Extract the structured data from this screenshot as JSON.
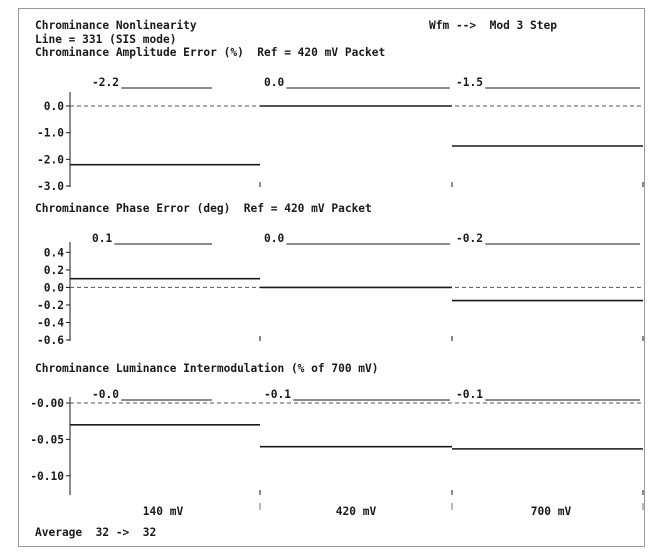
{
  "header": {
    "title": "Chrominance Nonlinearity",
    "mode": "Wfm -->  Mod 3 Step",
    "line": "Line = 331 (SIS mode)"
  },
  "panels": [
    {
      "title": "Chrominance Amplitude Error (%)  Ref = 420 mV Packet",
      "segment_values": [
        "-2.2",
        "0.0",
        "-1.5"
      ],
      "y_ticks": [
        "0.0",
        "-1.0",
        "-2.0",
        "-3.0"
      ]
    },
    {
      "title": "Chrominance Phase Error (deg)  Ref = 420 mV Packet",
      "segment_values": [
        "0.1",
        "0.0",
        "-0.2"
      ],
      "y_ticks": [
        "0.4",
        "0.2",
        "0.0",
        "-0.2",
        "-0.4",
        "-0.6"
      ]
    },
    {
      "title": "Chrominance Luminance Intermodulation (% of 700 mV)",
      "segment_values": [
        "-0.0",
        "-0.1",
        "-0.1"
      ],
      "y_ticks": [
        "-0.00",
        "-0.05",
        "-0.10"
      ]
    }
  ],
  "x_labels": [
    "140 mV",
    "420 mV",
    "700 mV"
  ],
  "footer": {
    "average": "Average  32 ->  32"
  },
  "chart_data": [
    {
      "type": "line",
      "title": "Chrominance Amplitude Error (%)  Ref = 420 mV Packet",
      "categories": [
        "140 mV",
        "420 mV",
        "700 mV"
      ],
      "values": [
        -2.2,
        0.0,
        -1.5
      ],
      "ylim": [
        -3.0,
        0.3
      ]
    },
    {
      "type": "line",
      "title": "Chrominance Phase Error (deg)  Ref = 420 mV Packet",
      "categories": [
        "140 mV",
        "420 mV",
        "700 mV"
      ],
      "values": [
        0.1,
        0.0,
        -0.15
      ],
      "ylim": [
        -0.6,
        0.45
      ]
    },
    {
      "type": "line",
      "title": "Chrominance Luminance Intermodulation (% of 700 mV)",
      "categories": [
        "140 mV",
        "420 mV",
        "700 mV"
      ],
      "values": [
        -0.03,
        -0.06,
        -0.063
      ],
      "ylim": [
        -0.125,
        0.0
      ]
    }
  ]
}
